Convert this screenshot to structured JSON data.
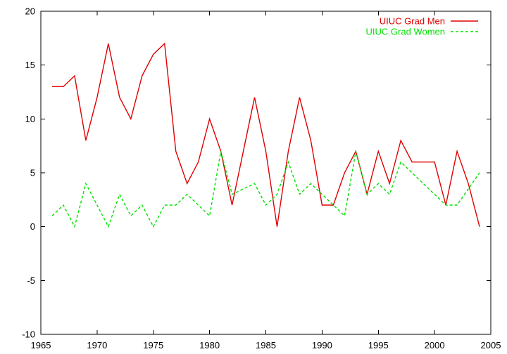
{
  "colors": {
    "background": "#ffffff",
    "axis": "#000000",
    "men": "#e00000",
    "women": "#00e000"
  },
  "chart_data": {
    "type": "line",
    "title": "",
    "xlabel": "",
    "ylabel": "",
    "xlim": [
      1965,
      2005
    ],
    "ylim": [
      -10,
      20
    ],
    "x_ticks": [
      1965,
      1970,
      1975,
      1980,
      1985,
      1990,
      1995,
      2000,
      2005
    ],
    "y_ticks": [
      -10,
      -5,
      0,
      5,
      10,
      15,
      20
    ],
    "grid": false,
    "legend_position": "top-right",
    "series": [
      {
        "name": "UIUC Grad Men",
        "color": "#e00000",
        "style": "solid",
        "x": [
          1966,
          1967,
          1968,
          1969,
          1970,
          1971,
          1972,
          1973,
          1974,
          1975,
          1976,
          1977,
          1978,
          1979,
          1980,
          1981,
          1982,
          1983,
          1984,
          1985,
          1986,
          1987,
          1988,
          1989,
          1990,
          1991,
          1992,
          1993,
          1994,
          1995,
          1996,
          1997,
          1998,
          1999,
          2000,
          2001,
          2002,
          2003,
          2004
        ],
        "values": [
          13,
          13,
          14,
          8,
          12,
          17,
          12,
          10,
          14,
          16,
          17,
          7,
          4,
          6,
          10,
          7,
          2,
          7,
          12,
          7,
          0,
          7,
          12,
          8,
          2,
          2,
          5,
          7,
          3,
          7,
          4,
          8,
          6,
          6,
          6,
          2,
          7,
          4,
          0
        ]
      },
      {
        "name": "UIUC Grad Women",
        "color": "#00e000",
        "style": "dashed",
        "x": [
          1966,
          1967,
          1968,
          1969,
          1971,
          1972,
          1973,
          1974,
          1975,
          1976,
          1977,
          1978,
          1980,
          1981,
          1982,
          1984,
          1985,
          1986,
          1987,
          1988,
          1989,
          1992,
          1993,
          1994,
          1995,
          1996,
          1997,
          2001,
          2002,
          2004
        ],
        "values": [
          1,
          2,
          0,
          4,
          0,
          3,
          1,
          2,
          0,
          2,
          2,
          3,
          1,
          7,
          3,
          4,
          2,
          3,
          6,
          3,
          4,
          1,
          7,
          3,
          4,
          3,
          6,
          2,
          2,
          5
        ]
      }
    ]
  }
}
